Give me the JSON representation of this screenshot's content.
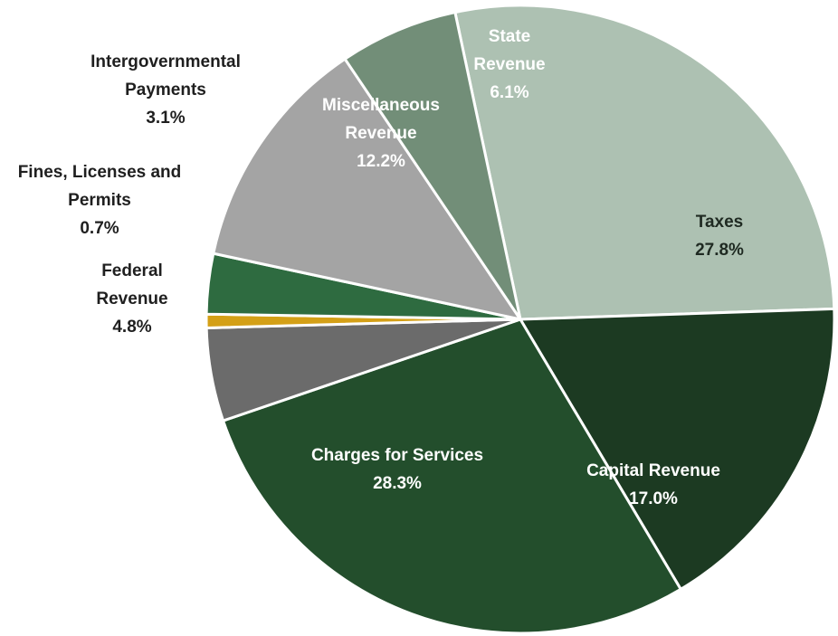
{
  "chart_data": {
    "type": "pie",
    "title": "",
    "slices": [
      {
        "name": "Taxes",
        "label_lines": [
          "Taxes",
          "27.8%"
        ],
        "value": 27.8,
        "color": "#adc1b2",
        "label_color": "#1f2a22"
      },
      {
        "name": "Capital Revenue",
        "label_lines": [
          "Capital Revenue",
          "17.0%"
        ],
        "value": 17.0,
        "color": "#1c3a22",
        "label_color": "#ffffff"
      },
      {
        "name": "Charges for Services",
        "label_lines": [
          "Charges for Services",
          "28.3%"
        ],
        "value": 28.3,
        "color": "#234e2c",
        "label_color": "#ffffff"
      },
      {
        "name": "Federal Revenue",
        "label_lines": [
          "Federal",
          "Revenue",
          "4.8%"
        ],
        "value": 4.8,
        "color": "#6b6b6b",
        "label_color": "#1f1f1f"
      },
      {
        "name": "Fines, Licenses and Permits",
        "label_lines": [
          "Fines, Licenses and",
          "Permits",
          "0.7%"
        ],
        "value": 0.7,
        "color": "#d4a017",
        "label_color": "#1f1f1f"
      },
      {
        "name": "Intergovernmental Payments",
        "label_lines": [
          "Intergovernmental",
          "Payments",
          "3.1%"
        ],
        "value": 3.1,
        "color": "#2e6b40",
        "label_color": "#1f1f1f"
      },
      {
        "name": "Miscellaneous Revenue",
        "label_lines": [
          "Miscellaneous",
          "Revenue",
          "12.2%"
        ],
        "value": 12.2,
        "color": "#a4a4a4",
        "label_color": "#ffffff"
      },
      {
        "name": "State Revenue",
        "label_lines": [
          "State",
          "Revenue",
          "6.1%"
        ],
        "value": 6.1,
        "color": "#728e78",
        "label_color": "#ffffff"
      }
    ],
    "legend": "none"
  }
}
